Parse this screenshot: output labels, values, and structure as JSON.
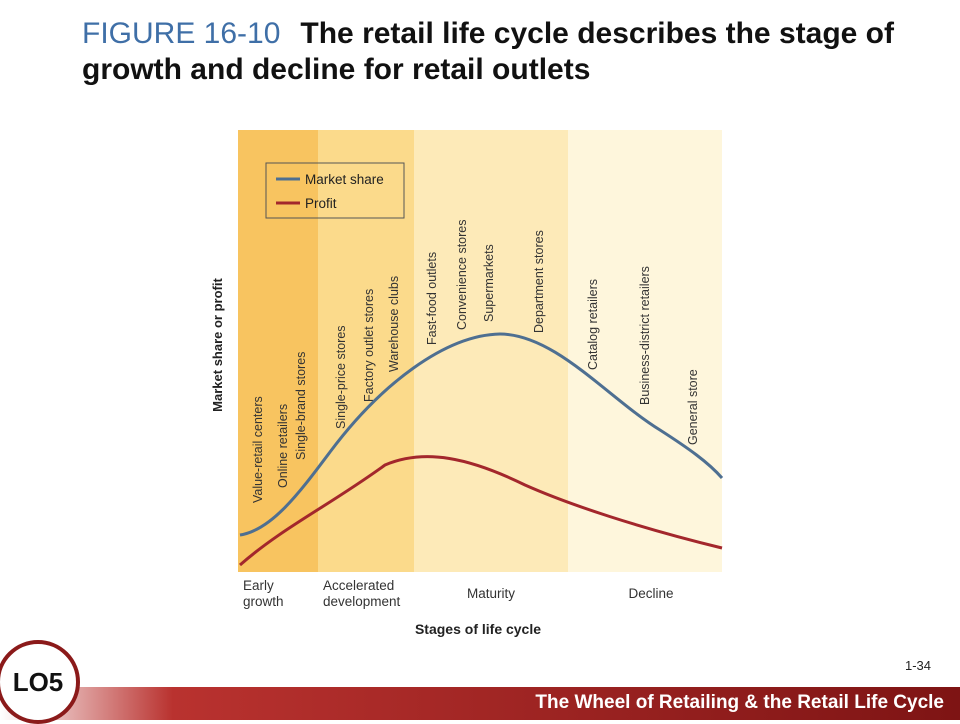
{
  "title": {
    "figure_label": "FIGURE 16-10",
    "text": "The retail life cycle describes the stage of growth and decline for retail outlets"
  },
  "footer": {
    "bar_text": "The Wheel of Retailing & the Retail Life Cycle",
    "page_number": "1-34",
    "lo_badge": "LO5"
  },
  "chart_data": {
    "type": "line",
    "xlabel": "Stages of life cycle",
    "ylabel": "Market share or profit",
    "stages": [
      {
        "name": "Early growth",
        "lines": [
          "Early",
          "growth"
        ],
        "color": "#f8c460"
      },
      {
        "name": "Accelerated development",
        "lines": [
          "Accelerated",
          "development"
        ],
        "color": "#fbda8b"
      },
      {
        "name": "Maturity",
        "lines": [
          "Maturity"
        ],
        "color": "#fdeab8"
      },
      {
        "name": "Decline",
        "lines": [
          "Decline"
        ],
        "color": "#fef6dc"
      }
    ],
    "legend": {
      "position": "top-left",
      "entries": [
        "Market share",
        "Profit"
      ]
    },
    "series": [
      {
        "name": "Market share",
        "color": "#4e6f91"
      },
      {
        "name": "Profit",
        "color": "#a3272c"
      }
    ],
    "store_labels": [
      {
        "text": "Value-retail centers",
        "stage": "Early growth"
      },
      {
        "text": "Online retailers",
        "stage": "Early growth"
      },
      {
        "text": "Single-brand stores",
        "stage": "Early growth"
      },
      {
        "text": "Single-price stores",
        "stage": "Accelerated development"
      },
      {
        "text": "Factory outlet stores",
        "stage": "Accelerated development"
      },
      {
        "text": "Warehouse clubs",
        "stage": "Accelerated development"
      },
      {
        "text": "Fast-food outlets",
        "stage": "Maturity"
      },
      {
        "text": "Convenience stores",
        "stage": "Maturity"
      },
      {
        "text": "Supermarkets",
        "stage": "Maturity"
      },
      {
        "text": "Department stores",
        "stage": "Maturity"
      },
      {
        "text": "Catalog retailers",
        "stage": "Decline"
      },
      {
        "text": "Business-district retailers",
        "stage": "Decline"
      },
      {
        "text": "General store",
        "stage": "Decline"
      }
    ]
  }
}
